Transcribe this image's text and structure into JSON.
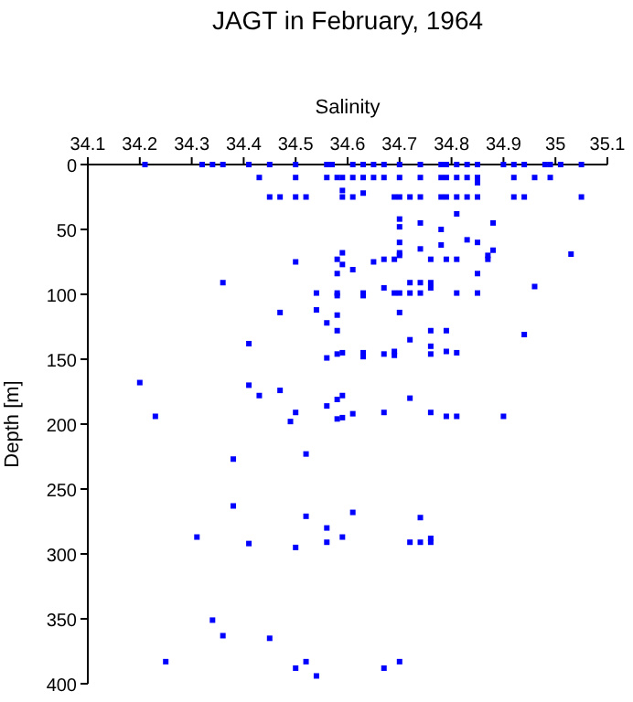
{
  "chart_data": {
    "type": "scatter",
    "title": "JAGT in February, 1964",
    "xlabel": "Salinity",
    "ylabel": "Depth [m]",
    "xlim": [
      34.1,
      35.1
    ],
    "xticks": [
      34.1,
      34.2,
      34.3,
      34.4,
      34.5,
      34.6,
      34.7,
      34.8,
      34.9,
      35,
      35.1
    ],
    "ylim": [
      400,
      0
    ],
    "yticks": [
      0,
      50,
      100,
      150,
      200,
      250,
      300,
      350,
      400
    ],
    "grid": false,
    "marker": "square",
    "series": [
      {
        "color": "#0000ff",
        "x": [
          34.21,
          34.32,
          34.34,
          34.36,
          34.41,
          34.45,
          34.5,
          34.56,
          34.57,
          34.61,
          34.63,
          34.65,
          34.67,
          34.7,
          34.74,
          34.78,
          34.79,
          34.81,
          34.83,
          34.85,
          34.9,
          34.92,
          34.94,
          34.98,
          34.99,
          35.01,
          35.05,
          34.43,
          34.5,
          34.56,
          34.58,
          34.59,
          34.61,
          34.63,
          34.65,
          34.67,
          34.7,
          34.74,
          34.78,
          34.79,
          34.81,
          34.83,
          34.85,
          34.92,
          34.96,
          34.99,
          34.85,
          34.59,
          34.63,
          34.45,
          34.47,
          34.5,
          34.52,
          34.59,
          34.61,
          34.69,
          34.7,
          34.72,
          34.74,
          34.78,
          34.79,
          34.81,
          34.83,
          34.85,
          34.92,
          34.94,
          35.05,
          34.7,
          34.74,
          34.81,
          34.78,
          34.88,
          34.7,
          34.83,
          34.7,
          34.74,
          34.78,
          34.85,
          34.88,
          34.87,
          34.59,
          34.7,
          34.7,
          34.58,
          34.67,
          34.69,
          34.76,
          34.79,
          34.81,
          34.87,
          34.5,
          34.65,
          34.59,
          34.61,
          34.58,
          34.85,
          34.36,
          34.72,
          34.74,
          34.76,
          34.96,
          34.67,
          34.76,
          34.54,
          34.58,
          34.63,
          34.69,
          34.7,
          34.72,
          34.74,
          34.81,
          34.85,
          34.58,
          34.63,
          35.03,
          34.47,
          34.54,
          34.58,
          34.56,
          34.58,
          34.7,
          34.72,
          34.76,
          34.79,
          34.94,
          34.41,
          34.56,
          34.58,
          34.59,
          34.63,
          34.63,
          34.67,
          34.69,
          34.69,
          34.76,
          34.76,
          34.79,
          34.81,
          34.2,
          34.41,
          34.43,
          34.47,
          34.23,
          34.49,
          34.5,
          34.56,
          34.58,
          34.59,
          34.58,
          34.59,
          34.61,
          34.67,
          34.72,
          34.76,
          34.79,
          34.81,
          34.9,
          34.38,
          34.52,
          34.38,
          34.52,
          34.61,
          34.56,
          34.59,
          34.74,
          34.31,
          34.41,
          34.5,
          34.56,
          34.72,
          34.74,
          34.76,
          34.76,
          34.34,
          34.36,
          34.45,
          34.25,
          34.5,
          34.52,
          34.54,
          34.67,
          34.7
        ],
        "values": [
          0,
          0,
          0,
          0,
          0,
          0,
          0,
          0,
          0,
          0,
          0,
          0,
          0,
          0,
          0,
          0,
          0,
          0,
          0,
          0,
          0,
          0,
          0,
          0,
          0,
          0,
          0,
          10,
          10,
          10,
          10,
          10,
          10,
          10,
          10,
          10,
          10,
          10,
          10,
          10,
          10,
          10,
          10,
          10,
          10,
          10,
          14,
          20,
          22,
          25,
          25,
          25,
          25,
          25,
          25,
          25,
          25,
          25,
          25,
          25,
          25,
          25,
          25,
          25,
          25,
          25,
          25,
          42,
          45,
          38,
          50,
          45,
          48,
          58,
          60,
          65,
          62,
          60,
          66,
          70,
          68,
          70,
          68,
          73,
          73,
          73,
          73,
          73,
          73,
          73,
          75,
          75,
          77,
          81,
          84,
          84,
          91,
          91,
          91,
          91,
          94,
          95,
          95,
          99,
          99,
          99,
          99,
          99,
          99,
          99,
          99,
          99,
          101,
          101,
          69,
          114,
          112,
          116,
          122,
          128,
          114,
          135,
          128,
          128,
          131,
          138,
          149,
          146,
          145,
          145,
          148,
          146,
          144,
          147,
          140,
          146,
          144,
          145,
          168,
          170,
          178,
          174,
          194,
          198,
          191,
          186,
          181,
          178,
          196,
          195,
          192,
          191,
          180,
          191,
          194,
          194,
          194,
          227,
          223,
          263,
          271,
          268,
          280,
          287,
          272,
          287,
          292,
          295,
          291,
          291,
          291,
          288,
          291,
          351,
          363,
          365,
          383,
          388,
          383,
          394,
          388,
          383
        ]
      }
    ]
  }
}
